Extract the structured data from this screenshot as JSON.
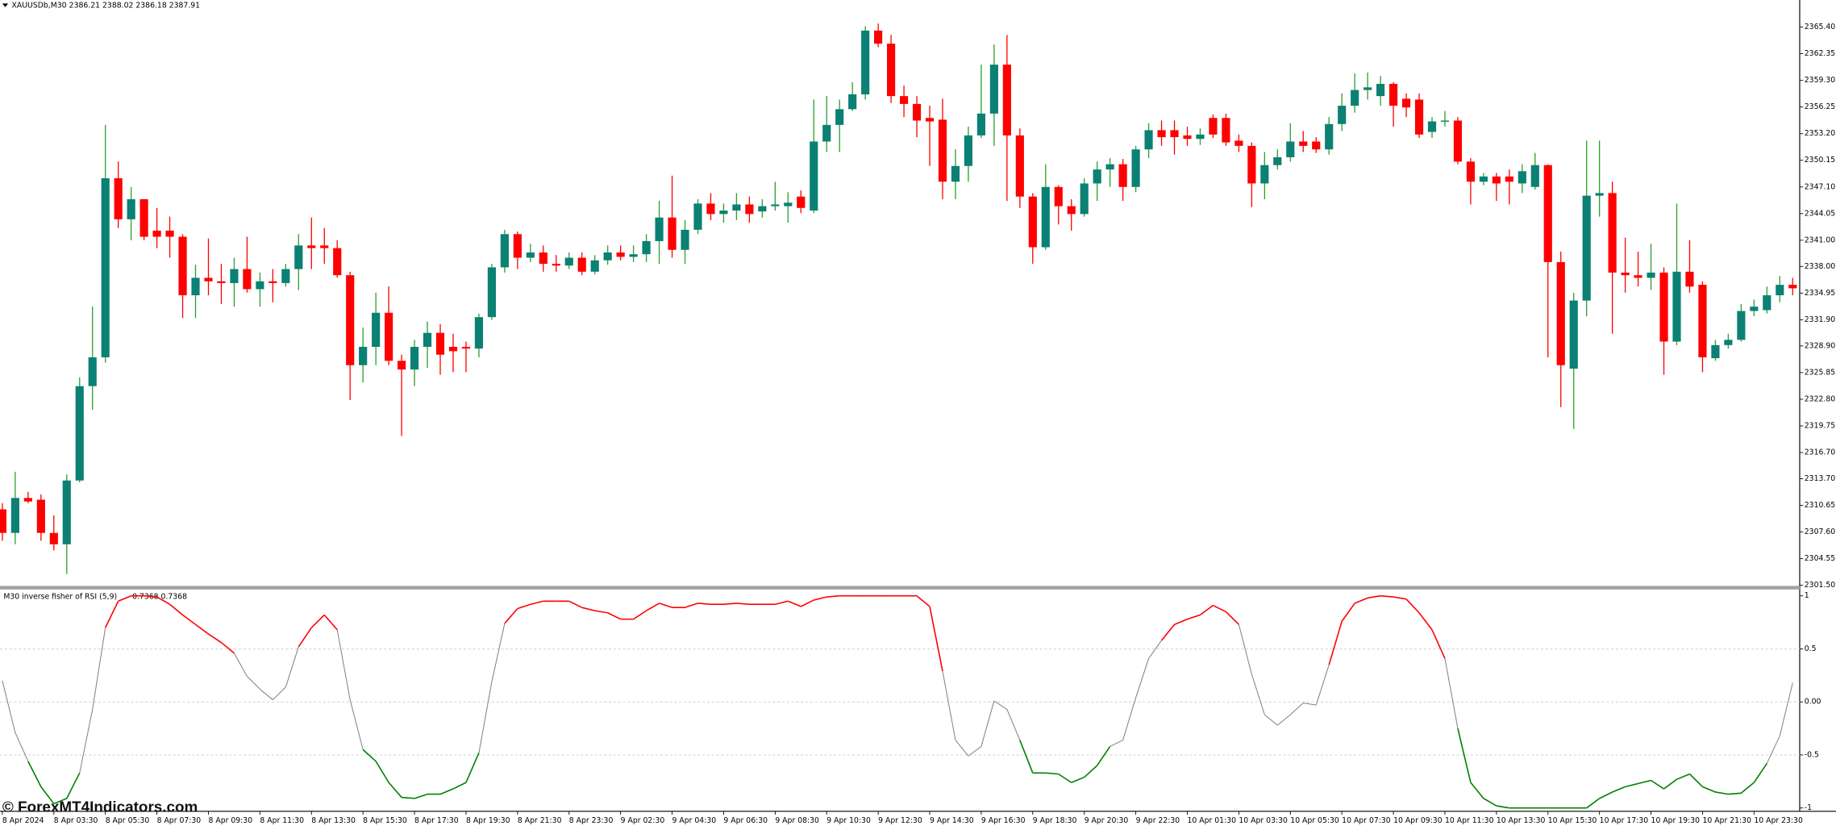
{
  "chart_data": [
    {
      "type": "candlestick",
      "title": "XAUUSDb,M30",
      "ohlc_text": "2386.21 2388.02 2386.18 2387.91",
      "up_color": "#0a8174",
      "up_wick_color": "#2ca02c",
      "down_color": "#ff0000",
      "ylim": [
        2301.5,
        2368.5
      ],
      "yticks": [
        {
          "value": 2365.4,
          "label": "2365.40"
        },
        2362.35,
        {
          "value": 2359.3,
          "label": "2359.30"
        },
        2356.25,
        {
          "value": 2353.2,
          "label": "2353.20"
        },
        2350.15,
        {
          "value": 2347.1,
          "label": "2347.10"
        },
        2344.05,
        {
          "value": 2341,
          "label": "2341.00"
        },
        {
          "value": 2338,
          "label": "2338.00"
        },
        2334.95,
        {
          "value": 2331.9,
          "label": "2331.90"
        },
        {
          "value": 2328.9,
          "label": "2328.90"
        },
        2325.85,
        {
          "value": 2322.8,
          "label": "2322.80"
        },
        2319.75,
        {
          "value": 2316.7,
          "label": "2316.70"
        },
        {
          "value": 2313.7,
          "label": "2313.70"
        },
        2310.65,
        {
          "value": 2307.6,
          "label": "2307.60"
        },
        2304.55,
        {
          "value": 2301.5,
          "label": "2301.50"
        }
      ],
      "categories": [
        "8 Apr 2024",
        null,
        null,
        null,
        "8 Apr 03:30",
        null,
        null,
        null,
        "8 Apr 05:30",
        null,
        null,
        null,
        "8 Apr 07:30",
        null,
        null,
        null,
        "8 Apr 09:30",
        null,
        null,
        null,
        "8 Apr 11:30",
        null,
        null,
        null,
        "8 Apr 13:30",
        null,
        null,
        null,
        "8 Apr 15:30",
        null,
        null,
        null,
        "8 Apr 17:30",
        null,
        null,
        null,
        "8 Apr 19:30",
        null,
        null,
        null,
        "8 Apr 21:30",
        null,
        null,
        null,
        "8 Apr 23:30",
        null,
        null,
        null,
        "9 Apr 02:30",
        null,
        null,
        null,
        "9 Apr 04:30",
        null,
        null,
        null,
        "9 Apr 06:30",
        null,
        null,
        null,
        "9 Apr 08:30",
        null,
        null,
        null,
        "9 Apr 10:30",
        null,
        null,
        null,
        "9 Apr 12:30",
        null,
        null,
        null,
        "9 Apr 14:30",
        null,
        null,
        null,
        "9 Apr 16:30",
        null,
        null,
        null,
        "9 Apr 18:30",
        null,
        null,
        null,
        "9 Apr 20:30",
        null,
        null,
        null,
        "9 Apr 22:30",
        null,
        null,
        null,
        "10 Apr 01:30",
        null,
        null,
        null,
        "10 Apr 03:30",
        null,
        null,
        null,
        "10 Apr 05:30",
        null,
        null,
        null,
        "10 Apr 07:30",
        null,
        null,
        null,
        "10 Apr 09:30",
        null,
        null,
        null,
        "10 Apr 11:30",
        null,
        null,
        null,
        "10 Apr 13:30",
        null,
        null,
        null,
        "10 Apr 15:30",
        null,
        null,
        null,
        "10 Apr 17:30",
        null,
        null,
        null,
        "10 Apr 19:30",
        null,
        null,
        null,
        "10 Apr 21:30",
        null,
        null,
        null,
        "10 Apr 23:30",
        null,
        null,
        null
      ],
      "open": [
        2310.2,
        2307.5,
        2311.5,
        2311.3,
        2307.5,
        2306.2,
        2313.5,
        2324.3,
        2327.6,
        2348.1,
        2343.4,
        2345.7,
        2342.1,
        2342.1,
        2341.4,
        2334.7,
        2336.7,
        2336.3,
        2336.1,
        2337.7,
        2335.4,
        2336.3,
        2336.1,
        2337.7,
        2340.4,
        2340.4,
        2340.1,
        2337.0,
        2326.7,
        2328.8,
        2332.7,
        2327.2,
        2326.2,
        2328.8,
        2330.4,
        2328.8,
        2328.8,
        2328.6,
        2332.2,
        2337.9,
        2341.7,
        2339.0,
        2339.6,
        2338.3,
        2338.1,
        2339.0,
        2337.4,
        2338.7,
        2339.6,
        2339.1,
        2339.4,
        2340.9,
        2343.6,
        2339.9,
        2342.2,
        2345.2,
        2344.0,
        2344.4,
        2345.1,
        2344.3,
        2344.9,
        2344.9,
        2346.0,
        2344.4,
        2352.3,
        2354.2,
        2356.0,
        2357.7,
        2365.0,
        2363.5,
        2357.5,
        2356.6,
        2355.0,
        2354.8,
        2347.7,
        2349.5,
        2353.0,
        2355.5,
        2361.1,
        2353.0,
        2346.0,
        2340.2,
        2347.1,
        2344.9,
        2344.0,
        2347.5,
        2349.1,
        2349.7,
        2347.1,
        2351.4,
        2353.6,
        2353.6,
        2353.0,
        2352.6,
        2355.0,
        2355.0,
        2352.4,
        2351.8,
        2347.5,
        2349.6,
        2350.5,
        2352.3,
        2352.3,
        2351.4,
        2354.3,
        2356.4,
        2358.2,
        2357.5,
        2358.9,
        2357.2,
        2357.1,
        2353.4,
        2354.6,
        2354.7,
        2350.0,
        2347.7,
        2348.3,
        2348.3,
        2347.5,
        2347.1,
        2349.6,
        2338.5,
        2326.3,
        2334.1,
        2346.1,
        2346.4,
        2337.3,
        2337.0,
        2336.7,
        2337.3,
        2329.4,
        2337.4,
        2335.9,
        2327.5,
        2329.0,
        2329.6,
        2332.9,
        2333.0,
        2334.7,
        2335.9
      ],
      "high": [
        2310.9,
        2314.5,
        2312.2,
        2311.9,
        2309.5,
        2314.2,
        2325.3,
        2333.4,
        2354.2,
        2350.0,
        2347.1,
        2345.7,
        2344.7,
        2343.7,
        2341.7,
        2338.2,
        2341.2,
        2338.3,
        2339.0,
        2341.4,
        2337.3,
        2337.7,
        2338.3,
        2341.7,
        2343.6,
        2342.4,
        2341.0,
        2337.4,
        2331.0,
        2335.0,
        2335.7,
        2327.9,
        2329.6,
        2331.7,
        2331.4,
        2330.3,
        2329.4,
        2332.6,
        2338.3,
        2342.2,
        2342.0,
        2340.6,
        2340.4,
        2339.3,
        2339.6,
        2339.6,
        2339.3,
        2340.4,
        2340.4,
        2340.4,
        2341.7,
        2345.5,
        2348.4,
        2343.3,
        2345.7,
        2346.4,
        2345.2,
        2346.4,
        2346.0,
        2345.7,
        2347.7,
        2346.5,
        2346.7,
        2357.1,
        2357.5,
        2357.1,
        2359.1,
        2365.5,
        2365.8,
        2364.5,
        2358.7,
        2357.5,
        2356.4,
        2357.2,
        2351.4,
        2354.0,
        2361.1,
        2363.4,
        2364.5,
        2353.8,
        2346.4,
        2349.7,
        2347.3,
        2345.7,
        2348.1,
        2350.0,
        2350.4,
        2350.3,
        2351.8,
        2354.4,
        2354.7,
        2354.7,
        2354.0,
        2353.8,
        2355.4,
        2355.5,
        2353.1,
        2352.2,
        2351.1,
        2351.4,
        2354.4,
        2353.5,
        2352.8,
        2355.1,
        2357.8,
        2360.1,
        2360.2,
        2359.8,
        2359.1,
        2357.8,
        2357.8,
        2355.1,
        2355.8,
        2355.1,
        2350.4,
        2348.7,
        2348.7,
        2349.1,
        2349.7,
        2351.0,
        2349.7,
        2339.7,
        2335.0,
        2352.4,
        2352.4,
        2347.7,
        2341.3,
        2339.7,
        2340.6,
        2337.9,
        2345.2,
        2341.0,
        2336.3,
        2329.6,
        2330.3,
        2333.7,
        2334.2,
        2335.7,
        2336.9,
        2336.7
      ],
      "low": [
        2306.6,
        2306.2,
        2310.9,
        2306.6,
        2305.5,
        2302.8,
        2313.3,
        2321.6,
        2327.0,
        2342.4,
        2341.0,
        2341.0,
        2340.1,
        2339.0,
        2332.1,
        2332.1,
        2334.7,
        2333.7,
        2333.4,
        2335.0,
        2333.4,
        2333.9,
        2335.7,
        2335.3,
        2337.7,
        2338.3,
        2336.7,
        2322.7,
        2324.7,
        2326.7,
        2326.7,
        2318.6,
        2324.3,
        2326.4,
        2325.6,
        2325.9,
        2325.9,
        2327.6,
        2331.9,
        2337.3,
        2337.7,
        2338.5,
        2337.4,
        2337.4,
        2337.7,
        2337.0,
        2337.1,
        2338.2,
        2338.7,
        2338.5,
        2338.5,
        2338.3,
        2339.0,
        2338.3,
        2341.7,
        2343.3,
        2343.0,
        2343.3,
        2343.0,
        2343.6,
        2344.4,
        2343.0,
        2344.1,
        2344.1,
        2351.1,
        2351.1,
        2355.8,
        2357.1,
        2363.1,
        2356.7,
        2355.1,
        2352.8,
        2349.5,
        2345.7,
        2345.7,
        2347.7,
        2352.7,
        2351.8,
        2345.5,
        2344.7,
        2338.3,
        2339.9,
        2342.8,
        2342.1,
        2343.7,
        2345.5,
        2347.1,
        2345.5,
        2346.5,
        2350.4,
        2351.8,
        2350.8,
        2351.8,
        2351.9,
        2352.7,
        2351.8,
        2351.1,
        2344.8,
        2345.7,
        2349.1,
        2350.0,
        2351.1,
        2351.0,
        2350.8,
        2353.5,
        2355.6,
        2357.1,
        2356.4,
        2354.0,
        2355.1,
        2352.7,
        2352.7,
        2354.0,
        2349.7,
        2345.1,
        2347.3,
        2345.5,
        2345.1,
        2346.4,
        2346.8,
        2327.6,
        2321.9,
        2319.4,
        2332.3,
        2343.7,
        2330.3,
        2335.0,
        2335.7,
        2335.3,
        2325.6,
        2329.0,
        2335.0,
        2325.9,
        2327.2,
        2328.6,
        2329.4,
        2332.3,
        2332.6,
        2333.9,
        2334.7
      ],
      "close": [
        2307.5,
        2311.5,
        2311.1,
        2307.5,
        2306.2,
        2313.5,
        2324.3,
        2327.6,
        2348.1,
        2343.4,
        2345.7,
        2341.4,
        2341.4,
        2341.4,
        2334.7,
        2336.7,
        2336.3,
        2336.1,
        2337.7,
        2335.4,
        2336.3,
        2336.1,
        2337.7,
        2340.4,
        2340.1,
        2340.1,
        2337.0,
        2326.7,
        2328.8,
        2332.7,
        2327.2,
        2326.2,
        2328.8,
        2330.4,
        2327.9,
        2328.3,
        2328.6,
        2332.2,
        2337.9,
        2341.7,
        2339.0,
        2339.6,
        2338.3,
        2338.1,
        2339.0,
        2337.4,
        2338.7,
        2339.6,
        2339.1,
        2339.4,
        2340.9,
        2343.6,
        2339.9,
        2342.2,
        2345.2,
        2344.0,
        2344.4,
        2345.1,
        2344.0,
        2344.9,
        2345.1,
        2345.3,
        2344.7,
        2352.3,
        2354.2,
        2356.0,
        2357.7,
        2365.0,
        2363.5,
        2357.5,
        2356.6,
        2354.7,
        2354.6,
        2347.7,
        2349.5,
        2353.0,
        2355.5,
        2361.1,
        2353.0,
        2346.0,
        2340.2,
        2347.1,
        2344.9,
        2344.0,
        2347.5,
        2349.1,
        2349.7,
        2347.1,
        2351.4,
        2353.6,
        2352.8,
        2352.8,
        2352.6,
        2353.1,
        2353.1,
        2352.2,
        2351.8,
        2347.5,
        2349.6,
        2350.5,
        2352.3,
        2351.8,
        2351.4,
        2354.3,
        2356.4,
        2358.2,
        2358.5,
        2358.9,
        2356.4,
        2356.2,
        2353.1,
        2354.6,
        2354.7,
        2350.0,
        2347.7,
        2348.3,
        2347.5,
        2347.7,
        2348.9,
        2349.6,
        2338.5,
        2326.7,
        2334.1,
        2346.1,
        2346.4,
        2337.3,
        2337.0,
        2336.7,
        2337.3,
        2329.4,
        2337.4,
        2335.7,
        2327.6,
        2329.0,
        2329.6,
        2332.9,
        2333.4,
        2334.7,
        2335.9,
        2335.5
      ]
    },
    {
      "type": "line",
      "title": "M30 inverse fisher of RSI (5,9)",
      "values_text": "0.7368 0.7368",
      "up_color": "#ff0000",
      "down_color": "#008000",
      "neutral_color": "#808080",
      "levels": [
        0.5,
        0,
        -0.5
      ],
      "ylim": [
        -1.02,
        1.055
      ],
      "yticks": [
        1,
        0.5,
        {
          "value": 0,
          "label": "0.00"
        },
        -0.5,
        -1
      ],
      "values": [
        0.2,
        -0.29,
        -0.56,
        -0.8,
        -0.96,
        -0.91,
        -0.67,
        -0.07,
        0.7,
        0.95,
        1,
        1,
        0.99,
        0.92,
        0.82,
        0.73,
        0.64,
        0.56,
        0.46,
        0.24,
        0.12,
        0.02,
        0.14,
        0.52,
        0.7,
        0.82,
        0.68,
        0.02,
        -0.45,
        -0.56,
        -0.76,
        -0.9,
        -0.91,
        -0.87,
        -0.87,
        -0.82,
        -0.76,
        -0.48,
        0.19,
        0.74,
        0.88,
        0.92,
        0.95,
        0.95,
        0.95,
        0.89,
        0.86,
        0.84,
        0.78,
        0.78,
        0.86,
        0.93,
        0.89,
        0.89,
        0.93,
        0.92,
        0.92,
        0.93,
        0.92,
        0.92,
        0.92,
        0.95,
        0.9,
        0.96,
        0.99,
        1,
        1,
        1,
        1,
        1,
        1,
        1,
        0.9,
        0.29,
        -0.36,
        -0.51,
        -0.42,
        0.01,
        -0.07,
        -0.36,
        -0.67,
        -0.67,
        -0.68,
        -0.76,
        -0.71,
        -0.6,
        -0.42,
        -0.36,
        0.04,
        0.41,
        0.58,
        0.73,
        0.78,
        0.82,
        0.91,
        0.85,
        0.73,
        0.26,
        -0.12,
        -0.22,
        -0.12,
        -0.01,
        -0.03,
        0.35,
        0.76,
        0.93,
        0.98,
        1,
        0.99,
        0.97,
        0.84,
        0.68,
        0.41,
        -0.25,
        -0.76,
        -0.91,
        -0.98,
        -1,
        -1,
        -1,
        -1,
        -1,
        -1,
        -1,
        -0.91,
        -0.85,
        -0.8,
        -0.77,
        -0.74,
        -0.82,
        -0.73,
        -0.68,
        -0.8,
        -0.85,
        -0.87,
        -0.86,
        -0.76,
        -0.58,
        -0.32,
        0.18
      ]
    }
  ],
  "watermark": "© ForexMT4Indicators.com"
}
